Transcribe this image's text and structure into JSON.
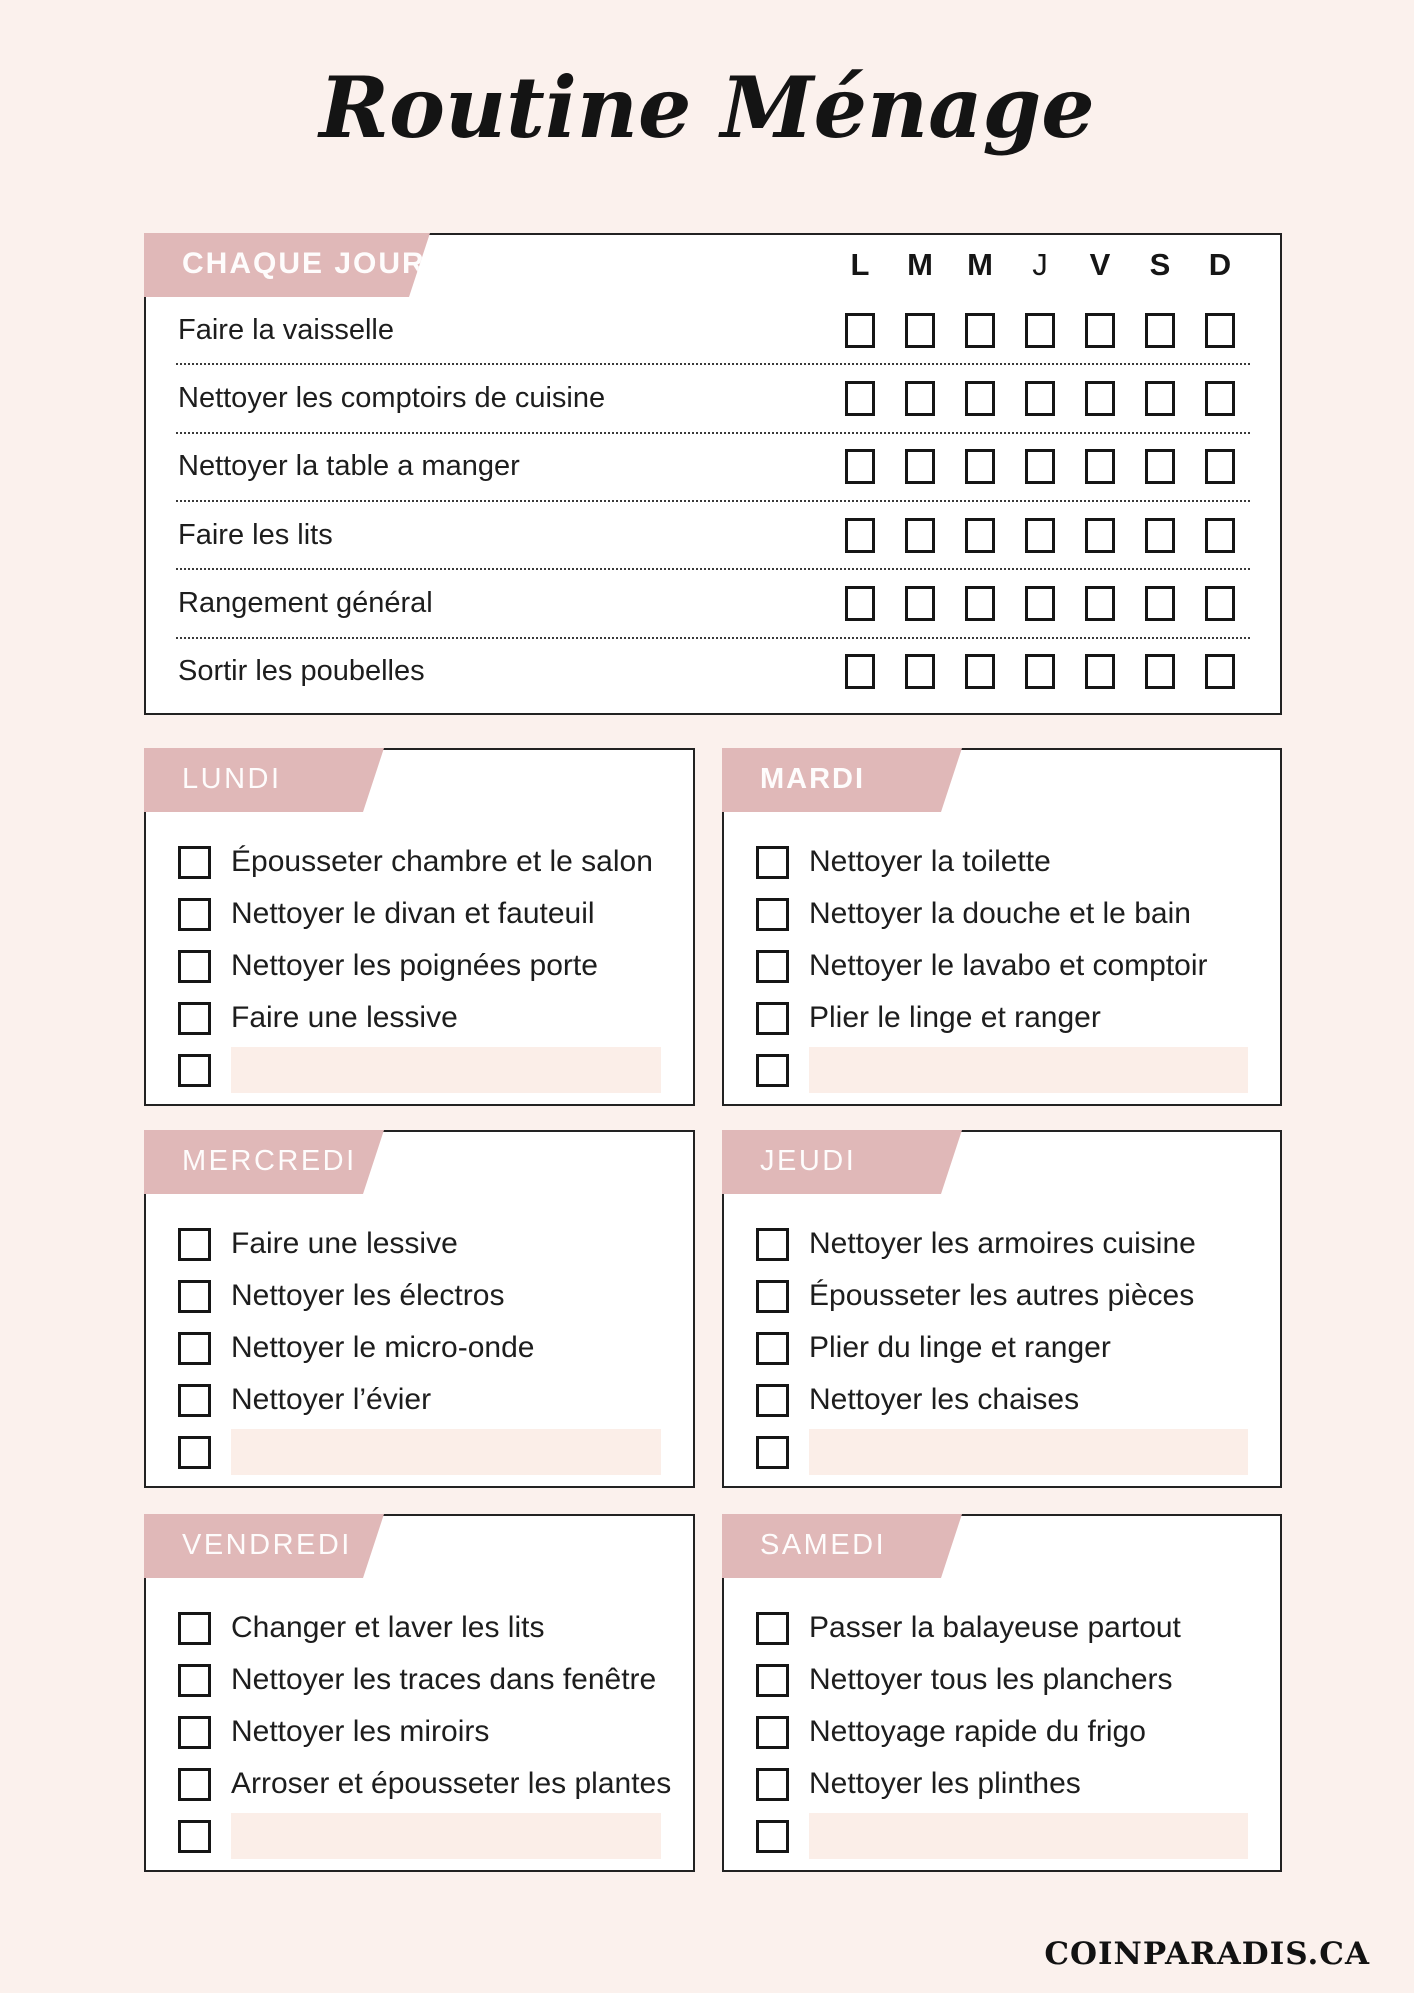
{
  "title": "Routine Ménage",
  "footer": "COINPARADIS.CA",
  "daily": {
    "label": "CHAQUE JOUR",
    "day_letters": [
      "L",
      "M",
      "M",
      "J",
      "V",
      "S",
      "D"
    ],
    "tasks": [
      "Faire la vaisselle",
      "Nettoyer les comptoirs de cuisine",
      "Nettoyer la table a manger",
      "Faire les lits",
      "Rangement général",
      "Sortir les poubelles"
    ]
  },
  "days": [
    {
      "label": "LUNDI",
      "tasks": [
        "Épousseter chambre et le salon",
        "Nettoyer le divan et fauteuil",
        "Nettoyer les poignées porte",
        "Faire une lessive"
      ]
    },
    {
      "label": "MARDI",
      "tasks": [
        "Nettoyer la toilette",
        "Nettoyer la douche et le bain",
        "Nettoyer le lavabo et comptoir",
        "Plier le linge et ranger"
      ]
    },
    {
      "label": "MERCREDI",
      "tasks": [
        "Faire une lessive",
        "Nettoyer les électros",
        "Nettoyer le micro-onde",
        "Nettoyer l’évier"
      ]
    },
    {
      "label": "JEUDI",
      "tasks": [
        "Nettoyer les armoires cuisine",
        "Épousseter les autres pièces",
        "Plier du linge et ranger",
        "Nettoyer les chaises"
      ]
    },
    {
      "label": "VENDREDI",
      "tasks": [
        "Changer et laver les lits",
        "Nettoyer les traces dans fenêtre",
        "Nettoyer les miroirs",
        "Arroser et épousseter les plantes"
      ]
    },
    {
      "label": "SAMEDI",
      "tasks": [
        "Passer la balayeuse partout",
        "Nettoyer tous les planchers",
        "Nettoyage rapide du frigo",
        "Nettoyer les plinthes"
      ]
    }
  ],
  "colors": {
    "background": "#fbf1ed",
    "banner_pink": "#e0b8b8",
    "blank_line_fill": "#fbeee8",
    "box_border": "#222222"
  }
}
